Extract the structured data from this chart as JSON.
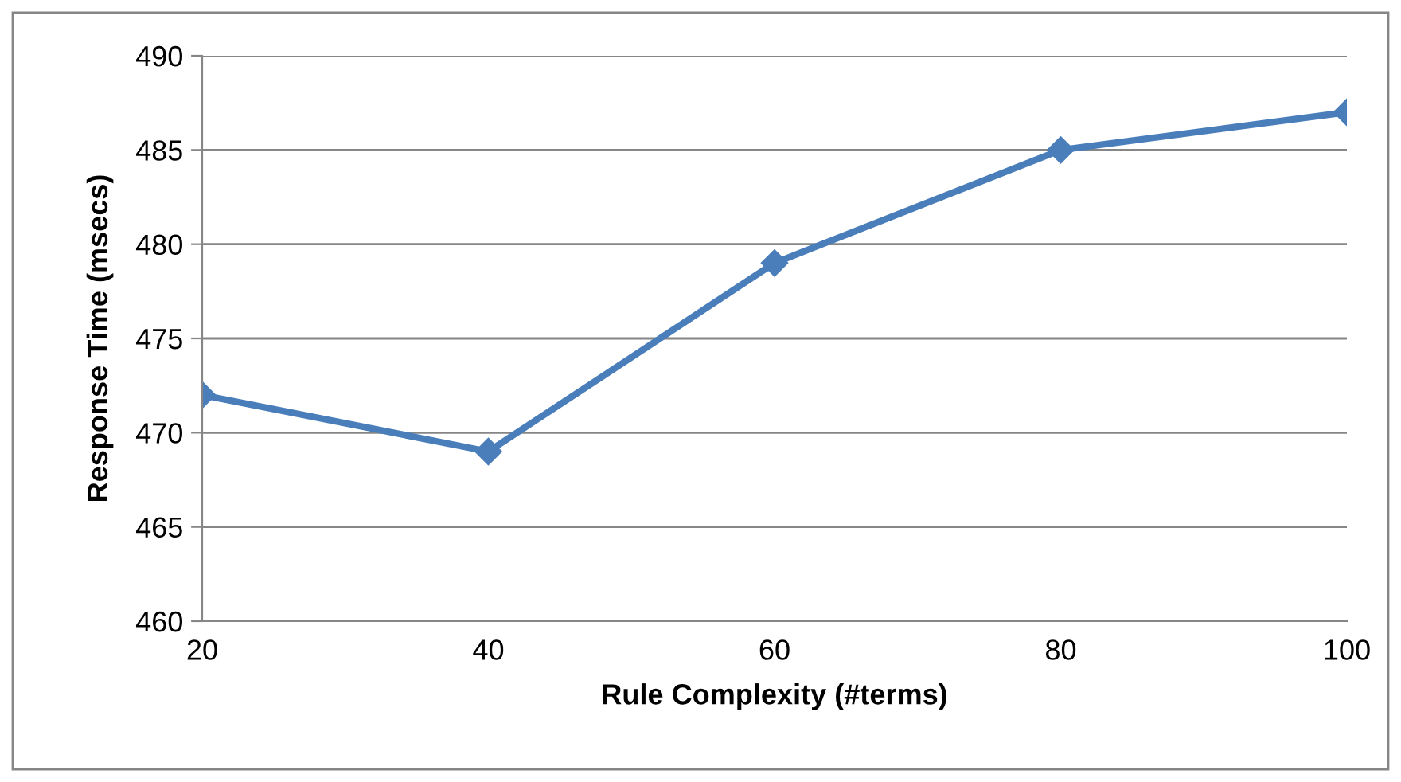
{
  "chart_data": {
    "type": "line",
    "xlabel": "Rule Complexity (#terms)",
    "ylabel": "Response Time (msecs)",
    "categories": [
      "20",
      "40",
      "60",
      "80",
      "100"
    ],
    "series": [
      {
        "color": "#4a7ebb",
        "values": [
          472,
          469,
          479,
          485,
          487
        ]
      }
    ],
    "ylim": [
      460,
      490
    ],
    "yticks": [
      460,
      465,
      470,
      475,
      480,
      485,
      490
    ],
    "grid": "y",
    "marker": "diamond",
    "line_style": "solid"
  }
}
